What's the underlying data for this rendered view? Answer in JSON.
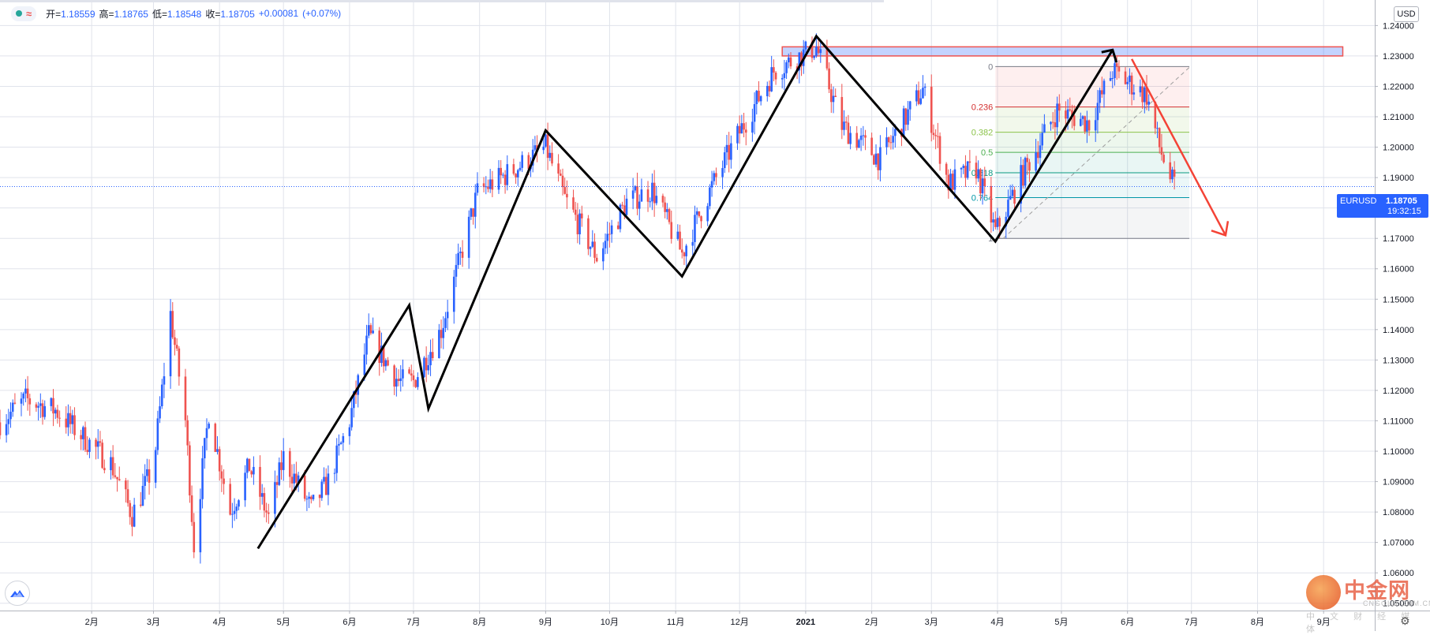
{
  "legend": {
    "open_label": "开=",
    "open": "1.18559",
    "high_label": "高=",
    "high": "1.18765",
    "low_label": "低=",
    "low": "1.18548",
    "close_label": "收=",
    "close": "1.18705",
    "change": "+0.00081",
    "change_pct": "(+0.07%)"
  },
  "currency_button": "USD",
  "price_badge": {
    "symbol": "EURUSD",
    "price": "1.18705",
    "countdown": "19:32:15"
  },
  "watermark": {
    "name": "中金网",
    "site": "CNGOLD.COM.CN",
    "sub": "中 文 财 经 媒 体"
  },
  "colors": {
    "up": "#2962ff",
    "down": "#ef5350",
    "grid": "#e0e3eb",
    "accent": "#2962ff",
    "trend": "#000000",
    "forecast_arrow": "#f44336"
  },
  "chart_data": {
    "type": "candlestick",
    "symbol": "EURUSD",
    "interval": "daily",
    "y_axis": {
      "ylim": [
        1.0476,
        1.2484
      ],
      "ticks": [
        "1.24000",
        "1.23000",
        "1.22000",
        "1.21000",
        "1.20000",
        "1.19000",
        "1.18000",
        "1.17000",
        "1.16000",
        "1.15000",
        "1.14000",
        "1.13000",
        "1.12000",
        "1.11000",
        "1.10000",
        "1.09000",
        "1.08000",
        "1.07000",
        "1.06000",
        "1.05000"
      ],
      "tick_values": [
        1.24,
        1.23,
        1.22,
        1.21,
        1.2,
        1.19,
        1.18,
        1.17,
        1.16,
        1.15,
        1.14,
        1.13,
        1.12,
        1.11,
        1.1,
        1.09,
        1.08,
        1.07,
        1.06,
        1.05
      ]
    },
    "x_axis": {
      "start": "2019-12-20",
      "end": "2021-09-25",
      "labels": [
        {
          "date": "2020-02-01",
          "text": "2月"
        },
        {
          "date": "2020-03-01",
          "text": "3月"
        },
        {
          "date": "2020-04-01",
          "text": "4月"
        },
        {
          "date": "2020-05-01",
          "text": "5月"
        },
        {
          "date": "2020-06-01",
          "text": "6月"
        },
        {
          "date": "2020-07-01",
          "text": "7月"
        },
        {
          "date": "2020-08-01",
          "text": "8月"
        },
        {
          "date": "2020-09-01",
          "text": "9月"
        },
        {
          "date": "2020-10-01",
          "text": "10月"
        },
        {
          "date": "2020-11-01",
          "text": "11月"
        },
        {
          "date": "2020-12-01",
          "text": "12月"
        },
        {
          "date": "2021-01-01",
          "text": "2021"
        },
        {
          "date": "2021-02-01",
          "text": "2月"
        },
        {
          "date": "2021-03-01",
          "text": "3月"
        },
        {
          "date": "2021-04-01",
          "text": "4月"
        },
        {
          "date": "2021-05-01",
          "text": "5月"
        },
        {
          "date": "2021-06-01",
          "text": "6月"
        },
        {
          "date": "2021-07-01",
          "text": "7月"
        },
        {
          "date": "2021-08-01",
          "text": "8月"
        },
        {
          "date": "2021-09-01",
          "text": "9月"
        }
      ]
    },
    "last_price": 1.18705,
    "price_path": [
      [
        "2019-12-20",
        1.1095
      ],
      [
        "2020-01-01",
        1.117
      ],
      [
        "2020-01-15",
        1.1135
      ],
      [
        "2020-02-01",
        1.102
      ],
      [
        "2020-02-10",
        1.096
      ],
      [
        "2020-02-20",
        1.079
      ],
      [
        "2020-03-01",
        1.095
      ],
      [
        "2020-03-09",
        1.145
      ],
      [
        "2020-03-16",
        1.11
      ],
      [
        "2020-03-20",
        1.069
      ],
      [
        "2020-03-27",
        1.113
      ],
      [
        "2020-04-06",
        1.08
      ],
      [
        "2020-04-15",
        1.095
      ],
      [
        "2020-04-24",
        1.078
      ],
      [
        "2020-05-01",
        1.098
      ],
      [
        "2020-05-14",
        1.081
      ],
      [
        "2020-05-22",
        1.09
      ],
      [
        "2020-06-01",
        1.11
      ],
      [
        "2020-06-10",
        1.138
      ],
      [
        "2020-06-24",
        1.123
      ],
      [
        "2020-07-01",
        1.123
      ],
      [
        "2020-07-14",
        1.14
      ],
      [
        "2020-07-31",
        1.185
      ],
      [
        "2020-08-18",
        1.193
      ],
      [
        "2020-09-01",
        1.2
      ],
      [
        "2020-09-10",
        1.183
      ],
      [
        "2020-09-25",
        1.164
      ],
      [
        "2020-10-09",
        1.182
      ],
      [
        "2020-10-21",
        1.186
      ],
      [
        "2020-11-04",
        1.165
      ],
      [
        "2020-11-18",
        1.187
      ],
      [
        "2020-12-01",
        1.205
      ],
      [
        "2020-12-17",
        1.225
      ],
      [
        "2021-01-06",
        1.233
      ],
      [
        "2021-01-18",
        1.207
      ],
      [
        "2021-02-05",
        1.196
      ],
      [
        "2021-02-25",
        1.219
      ],
      [
        "2021-03-09",
        1.188
      ],
      [
        "2021-03-22",
        1.193
      ],
      [
        "2021-03-31",
        1.172
      ],
      [
        "2021-04-12",
        1.19
      ],
      [
        "2021-04-29",
        1.212
      ],
      [
        "2021-05-14",
        1.208
      ],
      [
        "2021-05-25",
        1.225
      ],
      [
        "2021-06-10",
        1.217
      ],
      [
        "2021-06-16",
        1.2
      ],
      [
        "2021-06-21",
        1.19
      ],
      [
        "2021-06-23",
        1.18705
      ]
    ],
    "annotations": {
      "zigzag": [
        [
          "2020-04-19",
          1.068
        ],
        [
          "2020-06-29",
          1.148
        ],
        [
          "2020-07-08",
          1.114
        ],
        [
          "2020-09-01",
          1.2055
        ],
        [
          "2020-11-04",
          1.1575
        ],
        [
          "2021-01-06",
          1.2365
        ],
        [
          "2021-03-31",
          1.169
        ],
        [
          "2021-05-25",
          1.232
        ]
      ],
      "resistance_zone": {
        "from": "2020-12-21",
        "to": "2021-09-10",
        "low": 1.23,
        "high": 1.233
      },
      "fibonacci": {
        "from": "2021-03-31",
        "to": "2021-06-30",
        "high": 1.2265,
        "low": 1.17,
        "levels": [
          {
            "level": "0",
            "price": 1.2265,
            "color": "#787b86"
          },
          {
            "level": "0.236",
            "price": 1.2132,
            "color": "#d32f2f"
          },
          {
            "level": "0.382",
            "price": 1.2049,
            "color": "#8bc34a"
          },
          {
            "level": "0.5",
            "price": 1.1983,
            "color": "#4caf50"
          },
          {
            "level": "0.618",
            "price": 1.1916,
            "color": "#089981"
          },
          {
            "level": "0.764",
            "price": 1.1834,
            "color": "#0097a7"
          },
          {
            "level": "1",
            "price": 1.17,
            "color": "#787b86"
          }
        ]
      },
      "forecast_arrow": {
        "from": [
          "2021-06-03",
          1.229
        ],
        "to": [
          "2021-07-17",
          1.171
        ]
      }
    }
  }
}
